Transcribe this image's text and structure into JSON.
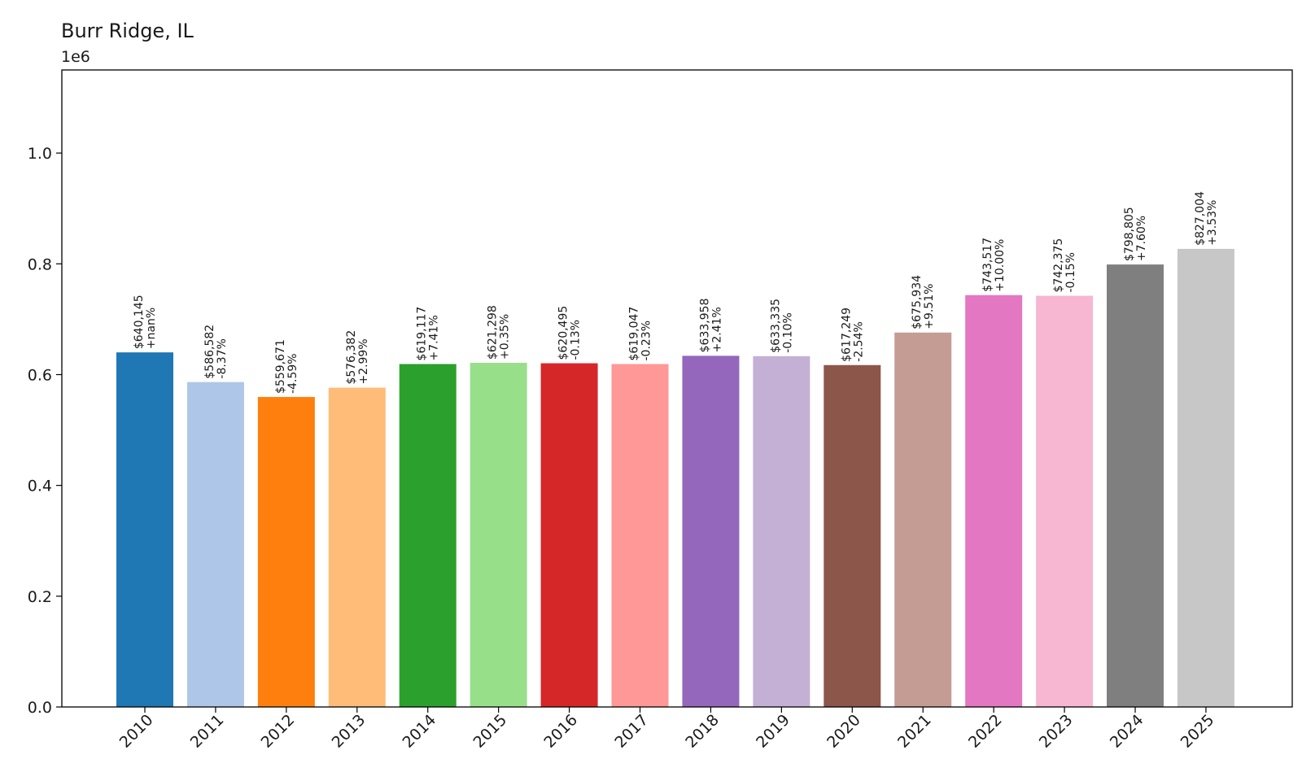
{
  "chart_data": {
    "type": "bar",
    "title": "Burr Ridge, IL",
    "xlabel": "",
    "ylabel": "",
    "y_offset_label": "1e6",
    "ylim": [
      0,
      1150000
    ],
    "grid": false,
    "yticks": [
      0,
      200000,
      400000,
      600000,
      800000,
      1000000
    ],
    "ytick_labels": [
      "0.0",
      "0.2",
      "0.4",
      "0.6",
      "0.8",
      "1.0"
    ],
    "categories": [
      "2010",
      "2011",
      "2012",
      "2013",
      "2014",
      "2015",
      "2016",
      "2017",
      "2018",
      "2019",
      "2020",
      "2021",
      "2022",
      "2023",
      "2024",
      "2025"
    ],
    "values": [
      640145,
      586582,
      559671,
      576382,
      619117,
      621298,
      620495,
      619047,
      633958,
      633335,
      617249,
      675934,
      743517,
      742375,
      798805,
      827004
    ],
    "value_labels": [
      "$640,145",
      "$586,582",
      "$559,671",
      "$576,382",
      "$619,117",
      "$621,298",
      "$620,495",
      "$619,047",
      "$633,958",
      "$633,335",
      "$617,249",
      "$675,934",
      "$743,517",
      "$742,375",
      "$798,805",
      "$827,004"
    ],
    "change_labels": [
      "+nan%",
      "-8.37%",
      "-4.59%",
      "+2.99%",
      "+7.41%",
      "+0.35%",
      "-0.13%",
      "-0.23%",
      "+2.41%",
      "-0.10%",
      "-2.54%",
      "+9.51%",
      "+10.00%",
      "-0.15%",
      "+7.60%",
      "+3.53%"
    ],
    "colors": [
      "#1f77b4",
      "#aec7e8",
      "#ff7f0e",
      "#ffbb78",
      "#2ca02c",
      "#98df8a",
      "#d62728",
      "#ff9896",
      "#9467bd",
      "#c5b0d5",
      "#8c564b",
      "#c49c94",
      "#e377c2",
      "#f7b6d2",
      "#7f7f7f",
      "#c7c7c7"
    ]
  }
}
